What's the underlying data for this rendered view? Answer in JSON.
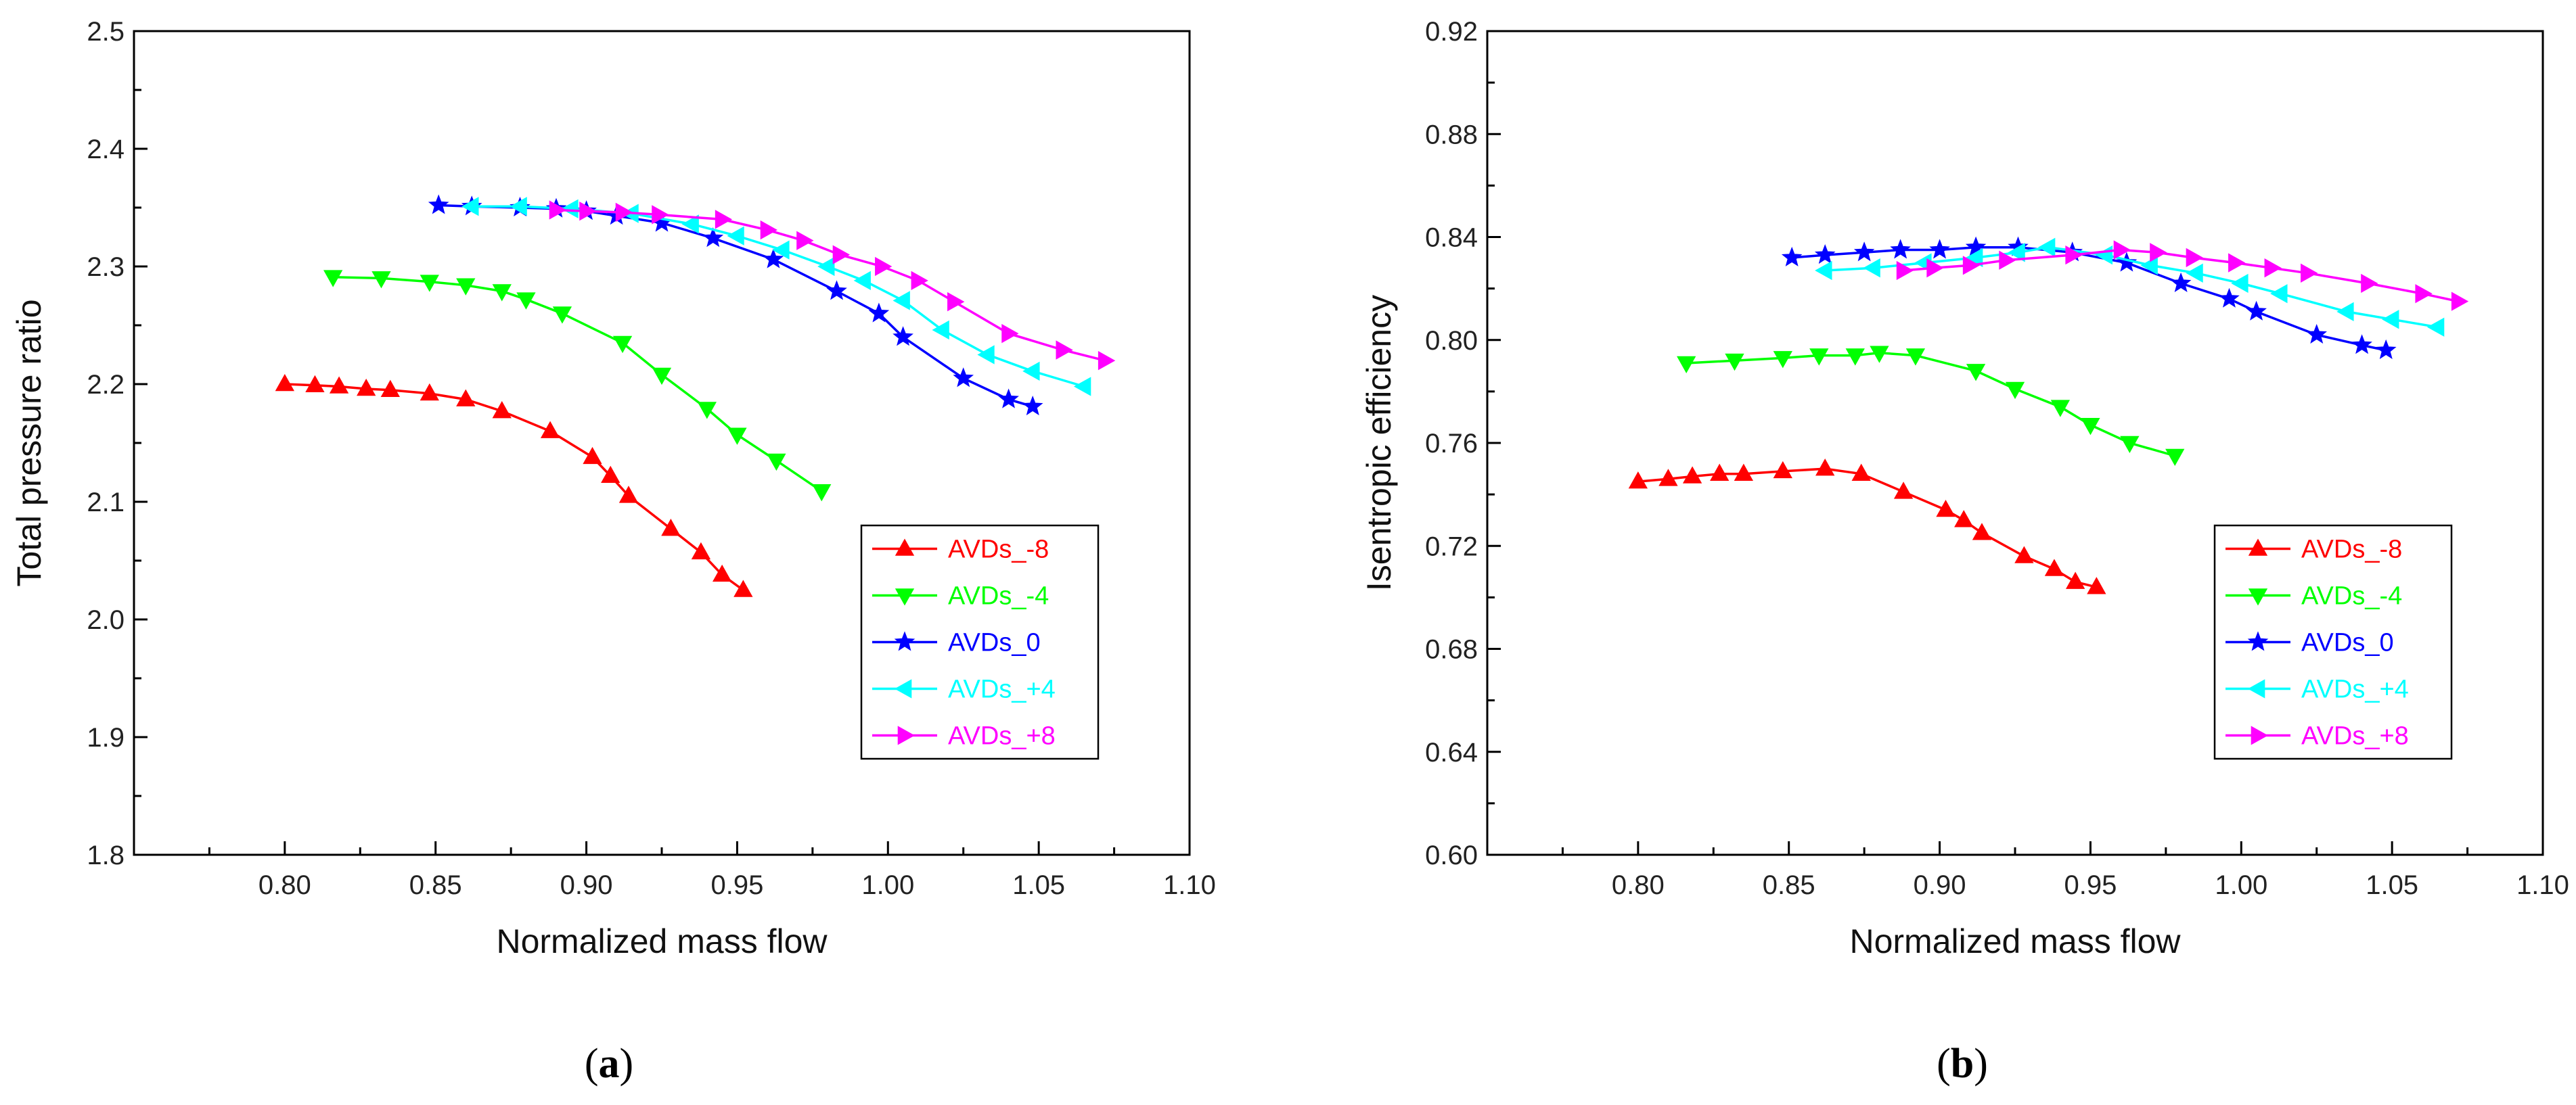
{
  "colors": {
    "AVDs_-8": "#ff0000",
    "AVDs_-4": "#00ff00",
    "AVDs_0": "#0000ff",
    "AVDs_+4": "#00ffff",
    "AVDs_+8": "#ff00ff"
  },
  "captions": [
    {
      "open": "(",
      "letter": "a",
      "close": ")"
    },
    {
      "open": "(",
      "letter": "b",
      "close": ")"
    }
  ],
  "chart_data": [
    {
      "type": "line",
      "title": "",
      "xlabel": "Normalized mass flow",
      "ylabel": "Total pressure ratio",
      "xlim": [
        0.75,
        1.1
      ],
      "ylim": [
        1.8,
        2.5
      ],
      "xticks": [
        "0.80",
        "0.85",
        "0.90",
        "0.95",
        "1.00",
        "1.05",
        "1.10"
      ],
      "yticks": [
        "1.8",
        "1.9",
        "2.0",
        "2.1",
        "2.2",
        "2.3",
        "2.4",
        "2.5"
      ],
      "legend_position": "lower-right",
      "series": [
        {
          "name": "AVDs_-8",
          "marker": "triangle-up",
          "x": [
            0.8,
            0.81,
            0.818,
            0.827,
            0.835,
            0.848,
            0.86,
            0.872,
            0.888,
            0.902,
            0.908,
            0.914,
            0.928,
            0.938,
            0.945,
            0.952
          ],
          "y": [
            2.2,
            2.199,
            2.198,
            2.196,
            2.195,
            2.192,
            2.187,
            2.177,
            2.16,
            2.138,
            2.122,
            2.105,
            2.077,
            2.057,
            2.038,
            2.025
          ]
        },
        {
          "name": "AVDs_-4",
          "marker": "triangle-down",
          "x": [
            0.816,
            0.832,
            0.848,
            0.86,
            0.872,
            0.88,
            0.892,
            0.912,
            0.925,
            0.94,
            0.95,
            0.963,
            0.978
          ],
          "y": [
            2.291,
            2.29,
            2.287,
            2.284,
            2.279,
            2.272,
            2.26,
            2.235,
            2.208,
            2.179,
            2.157,
            2.135,
            2.109
          ]
        },
        {
          "name": "AVDs_0",
          "marker": "star",
          "x": [
            0.851,
            0.862,
            0.878,
            0.89,
            0.9,
            0.91,
            0.925,
            0.942,
            0.962,
            0.983,
            0.997,
            1.005,
            1.025,
            1.04,
            1.048
          ],
          "y": [
            2.352,
            2.351,
            2.35,
            2.349,
            2.347,
            2.343,
            2.337,
            2.324,
            2.306,
            2.279,
            2.26,
            2.24,
            2.205,
            2.187,
            2.181
          ]
        },
        {
          "name": "AVDs_+4",
          "marker": "triangle-left",
          "x": [
            0.862,
            0.878,
            0.895,
            0.915,
            0.935,
            0.95,
            0.965,
            0.98,
            0.992,
            1.005,
            1.018,
            1.033,
            1.048,
            1.065
          ],
          "y": [
            2.351,
            2.351,
            2.349,
            2.345,
            2.336,
            2.326,
            2.314,
            2.3,
            2.288,
            2.271,
            2.246,
            2.225,
            2.211,
            2.198
          ]
        },
        {
          "name": "AVDs_+8",
          "marker": "triangle-right",
          "x": [
            0.89,
            0.9,
            0.912,
            0.924,
            0.945,
            0.96,
            0.972,
            0.984,
            0.998,
            1.01,
            1.022,
            1.04,
            1.058,
            1.072
          ],
          "y": [
            2.348,
            2.347,
            2.346,
            2.344,
            2.34,
            2.331,
            2.322,
            2.31,
            2.3,
            2.288,
            2.27,
            2.243,
            2.229,
            2.22
          ]
        }
      ]
    },
    {
      "type": "line",
      "title": "",
      "xlabel": "Normalized mass flow",
      "ylabel": "Isentropic efficiency",
      "xlim": [
        0.75,
        1.1
      ],
      "ylim": [
        0.6,
        0.92
      ],
      "xticks": [
        "0.80",
        "0.85",
        "0.90",
        "0.95",
        "1.00",
        "1.05",
        "1.10"
      ],
      "yticks": [
        "0.60",
        "0.64",
        "0.68",
        "0.72",
        "0.76",
        "0.80",
        "0.84",
        "0.88",
        "0.92"
      ],
      "legend_position": "lower-right",
      "series": [
        {
          "name": "AVDs_-8",
          "marker": "triangle-up",
          "x": [
            0.8,
            0.81,
            0.818,
            0.827,
            0.835,
            0.848,
            0.862,
            0.874,
            0.888,
            0.902,
            0.908,
            0.914,
            0.928,
            0.938,
            0.945,
            0.952
          ],
          "y": [
            0.745,
            0.746,
            0.747,
            0.748,
            0.748,
            0.749,
            0.75,
            0.748,
            0.741,
            0.734,
            0.73,
            0.725,
            0.716,
            0.711,
            0.706,
            0.704
          ]
        },
        {
          "name": "AVDs_-4",
          "marker": "triangle-down",
          "x": [
            0.816,
            0.832,
            0.848,
            0.86,
            0.872,
            0.88,
            0.892,
            0.912,
            0.925,
            0.94,
            0.95,
            0.963,
            0.978
          ],
          "y": [
            0.791,
            0.792,
            0.793,
            0.794,
            0.794,
            0.795,
            0.794,
            0.788,
            0.781,
            0.774,
            0.767,
            0.76,
            0.755
          ]
        },
        {
          "name": "AVDs_0",
          "marker": "star",
          "x": [
            0.851,
            0.862,
            0.875,
            0.887,
            0.9,
            0.912,
            0.926,
            0.944,
            0.962,
            0.98,
            0.996,
            1.005,
            1.025,
            1.04,
            1.048
          ],
          "y": [
            0.832,
            0.833,
            0.834,
            0.835,
            0.835,
            0.836,
            0.836,
            0.834,
            0.83,
            0.822,
            0.816,
            0.811,
            0.802,
            0.798,
            0.796
          ]
        },
        {
          "name": "AVDs_+4",
          "marker": "triangle-left",
          "x": [
            0.862,
            0.878,
            0.895,
            0.912,
            0.926,
            0.936,
            0.955,
            0.97,
            0.985,
            1.0,
            1.013,
            1.035,
            1.05,
            1.065
          ],
          "y": [
            0.827,
            0.828,
            0.83,
            0.832,
            0.834,
            0.836,
            0.833,
            0.829,
            0.826,
            0.822,
            0.818,
            0.811,
            0.808,
            0.805
          ]
        },
        {
          "name": "AVDs_+8",
          "marker": "triangle-right",
          "x": [
            0.888,
            0.898,
            0.91,
            0.922,
            0.944,
            0.96,
            0.972,
            0.984,
            0.998,
            1.01,
            1.022,
            1.042,
            1.06,
            1.072
          ],
          "y": [
            0.827,
            0.828,
            0.829,
            0.831,
            0.833,
            0.835,
            0.834,
            0.832,
            0.83,
            0.828,
            0.826,
            0.822,
            0.818,
            0.815
          ]
        }
      ]
    }
  ]
}
